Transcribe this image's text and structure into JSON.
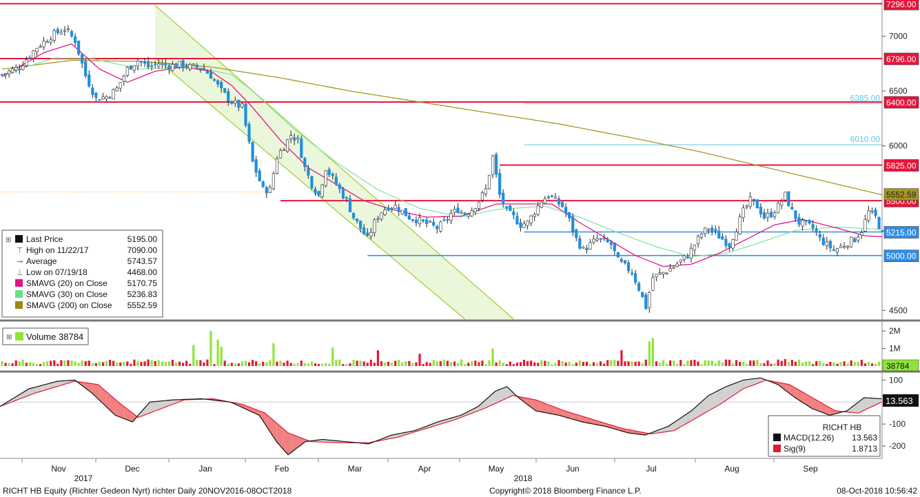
{
  "chart_data": [
    {
      "type": "candlestick",
      "panel": "price",
      "ylim": [
        4420,
        7330
      ],
      "y_ticks": [
        "7000",
        "6500",
        "6000",
        "4500"
      ],
      "close_path": [
        [
          0,
          6650
        ],
        [
          5,
          6720
        ],
        [
          10,
          6900
        ],
        [
          14,
          7000
        ],
        [
          18,
          7070
        ],
        [
          21,
          6960
        ],
        [
          24,
          6640
        ],
        [
          27,
          6430
        ],
        [
          30,
          6450
        ],
        [
          33,
          6520
        ],
        [
          36,
          6700
        ],
        [
          39,
          6780
        ],
        [
          42,
          6720
        ],
        [
          45,
          6750
        ],
        [
          48,
          6730
        ],
        [
          51,
          6740
        ],
        [
          54,
          6720
        ],
        [
          57,
          6720
        ],
        [
          60,
          6640
        ],
        [
          63,
          6500
        ],
        [
          66,
          6400
        ],
        [
          69,
          6350
        ],
        [
          72,
          5850
        ],
        [
          75,
          5600
        ],
        [
          77,
          5600
        ],
        [
          79,
          5900
        ],
        [
          81,
          6000
        ],
        [
          83,
          6100
        ],
        [
          85,
          6050
        ],
        [
          87,
          5800
        ],
        [
          89,
          5650
        ],
        [
          91,
          5550
        ],
        [
          93,
          5800
        ],
        [
          95,
          5700
        ],
        [
          97,
          5600
        ],
        [
          99,
          5500
        ],
        [
          101,
          5350
        ],
        [
          103,
          5250
        ],
        [
          105,
          5150
        ],
        [
          107,
          5300
        ],
        [
          109,
          5400
        ],
        [
          111,
          5450
        ],
        [
          113,
          5450
        ],
        [
          115,
          5400
        ],
        [
          117,
          5350
        ],
        [
          119,
          5330
        ],
        [
          121,
          5300
        ],
        [
          123,
          5280
        ],
        [
          125,
          5250
        ],
        [
          127,
          5300
        ],
        [
          129,
          5380
        ],
        [
          131,
          5420
        ],
        [
          133,
          5380
        ],
        [
          135,
          5420
        ],
        [
          137,
          5500
        ],
        [
          139,
          5600
        ],
        [
          141,
          5900
        ],
        [
          143,
          5550
        ],
        [
          145,
          5400
        ],
        [
          147,
          5350
        ],
        [
          149,
          5280
        ],
        [
          151,
          5300
        ],
        [
          153,
          5400
        ],
        [
          155,
          5500
        ],
        [
          157,
          5550
        ],
        [
          159,
          5500
        ],
        [
          161,
          5450
        ],
        [
          163,
          5320
        ],
        [
          165,
          5150
        ],
        [
          167,
          5050
        ],
        [
          169,
          5100
        ],
        [
          171,
          5150
        ],
        [
          173,
          5130
        ],
        [
          175,
          5100
        ],
        [
          177,
          4950
        ],
        [
          179,
          4900
        ],
        [
          181,
          4850
        ],
        [
          183,
          4700
        ],
        [
          185,
          4530
        ],
        [
          187,
          4800
        ],
        [
          189,
          4830
        ],
        [
          191,
          4860
        ],
        [
          193,
          4900
        ],
        [
          195,
          4950
        ],
        [
          197,
          5000
        ],
        [
          199,
          5100
        ],
        [
          201,
          5200
        ],
        [
          203,
          5250
        ],
        [
          205,
          5200
        ],
        [
          207,
          5150
        ],
        [
          209,
          5100
        ],
        [
          211,
          5250
        ],
        [
          213,
          5400
        ],
        [
          215,
          5500
        ],
        [
          217,
          5450
        ],
        [
          219,
          5350
        ],
        [
          221,
          5380
        ],
        [
          223,
          5450
        ],
        [
          225,
          5550
        ],
        [
          227,
          5400
        ],
        [
          229,
          5300
        ],
        [
          231,
          5280
        ],
        [
          233,
          5250
        ],
        [
          235,
          5150
        ],
        [
          237,
          5100
        ],
        [
          239,
          5050
        ],
        [
          241,
          5080
        ],
        [
          243,
          5120
        ],
        [
          245,
          5150
        ],
        [
          247,
          5230
        ],
        [
          249,
          5400
        ],
        [
          251,
          5350
        ],
        [
          253,
          5195
        ]
      ],
      "sma20_path": [
        [
          0,
          6630
        ],
        [
          12,
          6850
        ],
        [
          20,
          6930
        ],
        [
          28,
          6700
        ],
        [
          36,
          6580
        ],
        [
          44,
          6680
        ],
        [
          52,
          6720
        ],
        [
          60,
          6680
        ],
        [
          66,
          6550
        ],
        [
          72,
          6350
        ],
        [
          80,
          6050
        ],
        [
          88,
          5800
        ],
        [
          96,
          5650
        ],
        [
          104,
          5500
        ],
        [
          112,
          5420
        ],
        [
          122,
          5350
        ],
        [
          132,
          5360
        ],
        [
          142,
          5470
        ],
        [
          150,
          5470
        ],
        [
          158,
          5470
        ],
        [
          166,
          5300
        ],
        [
          174,
          5150
        ],
        [
          182,
          5000
        ],
        [
          190,
          4900
        ],
        [
          198,
          4920
        ],
        [
          206,
          5020
        ],
        [
          214,
          5150
        ],
        [
          222,
          5280
        ],
        [
          230,
          5330
        ],
        [
          240,
          5250
        ],
        [
          248,
          5180
        ],
        [
          253,
          5171
        ]
      ],
      "sma30_path": [
        [
          0,
          6650
        ],
        [
          15,
          6800
        ],
        [
          25,
          6800
        ],
        [
          40,
          6700
        ],
        [
          55,
          6720
        ],
        [
          66,
          6650
        ],
        [
          72,
          6500
        ],
        [
          84,
          6150
        ],
        [
          96,
          5850
        ],
        [
          108,
          5600
        ],
        [
          120,
          5430
        ],
        [
          132,
          5350
        ],
        [
          142,
          5420
        ],
        [
          156,
          5450
        ],
        [
          166,
          5350
        ],
        [
          176,
          5220
        ],
        [
          188,
          5080
        ],
        [
          198,
          4990
        ],
        [
          208,
          5020
        ],
        [
          218,
          5120
        ],
        [
          228,
          5230
        ],
        [
          240,
          5260
        ],
        [
          253,
          5237
        ]
      ],
      "sma200_path": [
        [
          0,
          6700
        ],
        [
          20,
          6780
        ],
        [
          40,
          6770
        ],
        [
          60,
          6720
        ],
        [
          80,
          6620
        ],
        [
          100,
          6500
        ],
        [
          120,
          6400
        ],
        [
          140,
          6300
        ],
        [
          160,
          6200
        ],
        [
          180,
          6080
        ],
        [
          200,
          5950
        ],
        [
          220,
          5800
        ],
        [
          240,
          5650
        ],
        [
          253,
          5553
        ]
      ],
      "resistance_lines": [
        {
          "value": 7296,
          "label": "7296.00"
        },
        {
          "value": 6796,
          "label": "6796.00"
        },
        {
          "value": 6400,
          "label": "6400.00"
        },
        {
          "value": 5825,
          "label": "5825.00"
        },
        {
          "value": 5500,
          "label": "5500.00"
        }
      ],
      "support_lines": [
        {
          "value": 5215,
          "label": "5215.00"
        },
        {
          "value": 5000,
          "label": "5000.00"
        }
      ],
      "fib_lines": [
        {
          "value": 6385,
          "label": "6385.00"
        },
        {
          "value": 6010,
          "label": "6010.00"
        }
      ],
      "sma200_tag": "5552.59",
      "channel": {
        "upper": [
          [
            44,
            7280
          ],
          [
            147,
            4420
          ]
        ],
        "lower": [
          [
            44,
            6800
          ],
          [
            133,
            4420
          ]
        ]
      },
      "legend": {
        "rows": [
          {
            "label": "Last Price",
            "value": "5195.00",
            "color": "#111111",
            "icon": "square-icon"
          },
          {
            "label": "High on 11/22/17",
            "value": "7090.00",
            "color": "#666666",
            "icon": "high-marker-icon"
          },
          {
            "label": "Average",
            "value": "5743.57",
            "color": "#666666",
            "icon": "average-marker-icon"
          },
          {
            "label": "Low on 07/19/18",
            "value": "4468.00",
            "color": "#666666",
            "icon": "low-marker-icon"
          },
          {
            "label": "SMAVG (20)  on Close",
            "value": "5170.75",
            "color": "#e0158a",
            "icon": "square-icon"
          },
          {
            "label": "SMAVG (30)  on Close",
            "value": "5236.83",
            "color": "#66e08a",
            "icon": "square-icon"
          },
          {
            "label": "SMAVG (200)  on Close",
            "value": "5552.59",
            "color": "#9c8a10",
            "icon": "square-icon"
          }
        ]
      },
      "colors": {
        "up": "#ffffff",
        "down": "#1f8fe0",
        "sma20": "#e0158a",
        "sma30": "#7fe29a",
        "sma200": "#a6961f",
        "hline": "#e8143a",
        "support": "#2f8fe6",
        "fib": "#5fc4e8",
        "channel": "#9acd32"
      }
    },
    {
      "type": "bar",
      "panel": "volume",
      "title": "Volume",
      "last_value": "38784",
      "y_ticks": [
        "2M",
        "1M"
      ],
      "ylim": [
        0,
        2400000
      ],
      "spikes": [
        [
          55,
          1200000
        ],
        [
          60,
          2000000
        ],
        [
          62,
          1500000
        ],
        [
          63,
          1100000
        ],
        [
          78,
          1300000
        ],
        [
          95,
          1050000
        ],
        [
          108,
          900000
        ],
        [
          120,
          700000
        ],
        [
          141,
          1000000
        ],
        [
          178,
          900000
        ],
        [
          186,
          1400000
        ],
        [
          187,
          1600000
        ],
        [
          225,
          400000
        ]
      ],
      "base_volume": 300000,
      "colors": {
        "up": "#8fe43a",
        "down": "#e61932"
      }
    },
    {
      "type": "line",
      "panel": "macd",
      "ylim": [
        -250,
        120
      ],
      "y_ticks": [
        "100",
        "-100",
        "-200"
      ],
      "macd_path": [
        [
          0,
          -20
        ],
        [
          10,
          60
        ],
        [
          20,
          95
        ],
        [
          26,
          100
        ],
        [
          32,
          40
        ],
        [
          40,
          -60
        ],
        [
          46,
          -90
        ],
        [
          52,
          0
        ],
        [
          60,
          10
        ],
        [
          70,
          15
        ],
        [
          80,
          0
        ],
        [
          90,
          -60
        ],
        [
          96,
          -180
        ],
        [
          100,
          -240
        ],
        [
          106,
          -180
        ],
        [
          112,
          -170
        ],
        [
          120,
          -180
        ],
        [
          128,
          -190
        ],
        [
          136,
          -150
        ],
        [
          144,
          -130
        ],
        [
          152,
          -90
        ],
        [
          160,
          -60
        ],
        [
          166,
          -20
        ],
        [
          172,
          50
        ],
        [
          176,
          70
        ],
        [
          180,
          20
        ],
        [
          186,
          -40
        ],
        [
          194,
          -60
        ],
        [
          202,
          -90
        ],
        [
          210,
          -110
        ],
        [
          218,
          -140
        ],
        [
          224,
          -150
        ],
        [
          232,
          -110
        ],
        [
          240,
          -40
        ],
        [
          246,
          30
        ],
        [
          252,
          70
        ],
        [
          258,
          100
        ],
        [
          264,
          110
        ],
        [
          270,
          80
        ],
        [
          276,
          20
        ],
        [
          282,
          -30
        ],
        [
          288,
          -60
        ],
        [
          294,
          -40
        ],
        [
          300,
          20
        ],
        [
          306,
          15
        ]
      ],
      "sig_path": [
        [
          0,
          -20
        ],
        [
          12,
          40
        ],
        [
          26,
          95
        ],
        [
          34,
          80
        ],
        [
          42,
          -10
        ],
        [
          48,
          -70
        ],
        [
          56,
          -30
        ],
        [
          64,
          10
        ],
        [
          74,
          15
        ],
        [
          84,
          -10
        ],
        [
          92,
          -50
        ],
        [
          100,
          -140
        ],
        [
          108,
          -180
        ],
        [
          118,
          -185
        ],
        [
          128,
          -185
        ],
        [
          138,
          -160
        ],
        [
          148,
          -120
        ],
        [
          158,
          -80
        ],
        [
          168,
          -30
        ],
        [
          178,
          30
        ],
        [
          186,
          10
        ],
        [
          196,
          -40
        ],
        [
          206,
          -80
        ],
        [
          216,
          -120
        ],
        [
          226,
          -145
        ],
        [
          234,
          -130
        ],
        [
          242,
          -70
        ],
        [
          250,
          -10
        ],
        [
          258,
          60
        ],
        [
          266,
          100
        ],
        [
          274,
          80
        ],
        [
          282,
          20
        ],
        [
          290,
          -40
        ],
        [
          298,
          -50
        ],
        [
          306,
          0
        ]
      ],
      "box": {
        "ticker": "RICHT HB",
        "rows": [
          {
            "label": "MACD(12,26)",
            "value": "13.563",
            "color": "#111111"
          },
          {
            "label": "Sig(9)",
            "value": "1.8713",
            "color": "#e61932"
          }
        ]
      },
      "last_value": "13.563",
      "colors": {
        "macd": "#111111",
        "sig": "#e61932",
        "fill_pos": "#d0d0d0",
        "fill_neg": "#f08080"
      }
    }
  ],
  "x_axis": {
    "months": [
      "Nov",
      "Dec",
      "Jan",
      "Feb",
      "Mar",
      "Apr",
      "May",
      "Jun",
      "Jul",
      "Aug",
      "Sep"
    ],
    "years": [
      "2017",
      "2018"
    ]
  },
  "footer": {
    "left": "RICHT HB Equity (Richter Gedeon Nyrt) richter  Daily 20NOV2016-08OCT2018",
    "center": "Copyright© 2018 Bloomberg Finance L.P.",
    "right": "08-Oct-2018 10:56:42"
  }
}
